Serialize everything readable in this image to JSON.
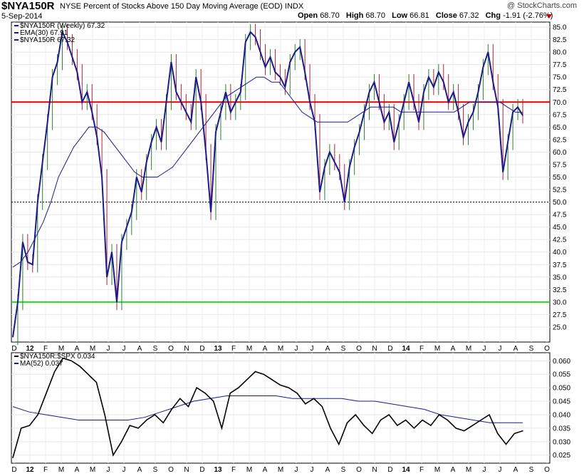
{
  "header": {
    "symbol": "$NYA150R",
    "description": "NYSE Percent of Stocks Above 150 Day Moving Average (EOD)  INDX",
    "date": "5-Sep-2014",
    "open_label": "Open",
    "open": "68.70",
    "high_label": "High",
    "high": "68.70",
    "low_label": "Low",
    "low": "66.81",
    "close_label": "Close",
    "close": "67.32",
    "chg_label": "Chg",
    "chg": "-1.91 (-2.76%)",
    "brand": "@ StockCharts.com"
  },
  "colors": {
    "price_line": "#1a1a8c",
    "ema_line": "#1a1a8c",
    "up_bar": "#2e7d32",
    "down_bar": "#b0203a",
    "upper_band": "#e60000",
    "lower_band": "#22dd22",
    "ratio_line": "#000000",
    "ma_line": "#1a1a8c"
  },
  "chart_data": [
    {
      "type": "line",
      "title": "$NYA150R NYSE Percent of Stocks Above 150 Day Moving Average (EOD)",
      "legend": [
        "$NYA150R (Weekly) 67.32",
        "EMA(30) 67.91",
        "$NYA150R 67.32"
      ],
      "ylim": [
        22,
        86
      ],
      "y_ticks": [
        25.0,
        27.5,
        30.0,
        32.5,
        35.0,
        37.5,
        40.0,
        42.5,
        45.0,
        47.5,
        50.0,
        52.5,
        55.0,
        57.5,
        60.0,
        62.5,
        65.0,
        67.5,
        70.0,
        72.5,
        75.0,
        77.5,
        80.0,
        82.5,
        85.0
      ],
      "x_ticks": [
        "D",
        "12",
        "F",
        "M",
        "A",
        "M",
        "J",
        "J",
        "A",
        "S",
        "O",
        "N",
        "D",
        "13",
        "F",
        "M",
        "A",
        "M",
        "J",
        "J",
        "A",
        "S",
        "O",
        "N",
        "D",
        "14",
        "F",
        "M",
        "A",
        "M",
        "J",
        "J",
        "A",
        "S",
        "O"
      ],
      "reference_lines": [
        70,
        50,
        30
      ],
      "series": [
        {
          "name": "$NYA150R",
          "values": [
            23,
            30,
            42,
            38,
            37.5,
            50,
            58,
            66,
            75,
            78,
            84,
            82,
            79,
            76,
            70,
            72,
            68,
            63,
            55,
            35,
            40,
            30,
            42,
            45,
            48,
            55,
            52,
            58,
            62,
            65,
            62,
            70,
            78,
            72,
            70,
            68,
            66,
            75,
            70,
            60,
            48,
            64,
            68,
            72,
            68,
            70,
            72,
            82,
            84,
            83,
            80,
            77,
            79,
            76,
            75,
            73,
            78,
            80,
            81,
            76,
            70,
            66,
            52,
            57,
            60,
            58,
            56,
            50,
            57,
            61,
            64,
            68,
            72,
            74,
            70,
            66,
            68,
            62,
            66,
            70,
            74,
            70,
            66,
            72,
            75,
            73,
            76,
            74,
            70,
            72,
            68,
            63,
            66,
            68,
            72,
            77,
            80,
            74,
            69,
            56,
            62,
            68,
            69,
            67.32
          ],
          "ema30": [
            37,
            38,
            40,
            43,
            46,
            50,
            55,
            58,
            61,
            63,
            65,
            65,
            64,
            62,
            60,
            58,
            56,
            55,
            55,
            55,
            56,
            57,
            59,
            61,
            63,
            65,
            67,
            69,
            71,
            72,
            73,
            74,
            75,
            75,
            74,
            74,
            72,
            70,
            68,
            67,
            66,
            66,
            66,
            66,
            66,
            67,
            68,
            69,
            69,
            69,
            69,
            68,
            68,
            68,
            68,
            68,
            68,
            68,
            68,
            69,
            70,
            70,
            70,
            70,
            70,
            69,
            68,
            67.91
          ]
        }
      ]
    },
    {
      "type": "line",
      "title": "$NYA150R:$SPX",
      "legend": [
        "$NYA150R:$SPX 0.034",
        "MA(52) 0.037"
      ],
      "ylim": [
        0.022,
        0.063
      ],
      "y_ticks": [
        0.025,
        0.03,
        0.035,
        0.04,
        0.045,
        0.05,
        0.055,
        0.06
      ],
      "x_ticks": [
        "D",
        "12",
        "F",
        "M",
        "A",
        "M",
        "J",
        "J",
        "A",
        "S",
        "O",
        "N",
        "D",
        "13",
        "F",
        "M",
        "A",
        "M",
        "J",
        "J",
        "A",
        "S",
        "O",
        "N",
        "D",
        "14",
        "F",
        "M",
        "A",
        "M",
        "J",
        "J",
        "A",
        "S",
        "O"
      ],
      "series": [
        {
          "name": "$NYA150R:$SPX",
          "values": [
            0.024,
            0.035,
            0.036,
            0.04,
            0.048,
            0.056,
            0.061,
            0.06,
            0.058,
            0.055,
            0.052,
            0.04,
            0.025,
            0.03,
            0.036,
            0.035,
            0.038,
            0.04,
            0.037,
            0.042,
            0.046,
            0.043,
            0.05,
            0.048,
            0.045,
            0.035,
            0.048,
            0.05,
            0.053,
            0.056,
            0.055,
            0.053,
            0.051,
            0.05,
            0.048,
            0.044,
            0.046,
            0.043,
            0.035,
            0.029,
            0.037,
            0.04,
            0.036,
            0.033,
            0.038,
            0.04,
            0.036,
            0.038,
            0.035,
            0.038,
            0.036,
            0.04,
            0.038,
            0.035,
            0.034,
            0.036,
            0.038,
            0.04,
            0.033,
            0.029,
            0.033,
            0.034
          ],
          "ma52": [
            0.043,
            0.041,
            0.04,
            0.039,
            0.038,
            0.038,
            0.038,
            0.038,
            0.039,
            0.041,
            0.043,
            0.045,
            0.046,
            0.047,
            0.047,
            0.047,
            0.047,
            0.046,
            0.046,
            0.046,
            0.046,
            0.045,
            0.045,
            0.044,
            0.043,
            0.042,
            0.04,
            0.039,
            0.038,
            0.037,
            0.037,
            0.037
          ]
        }
      ]
    }
  ]
}
